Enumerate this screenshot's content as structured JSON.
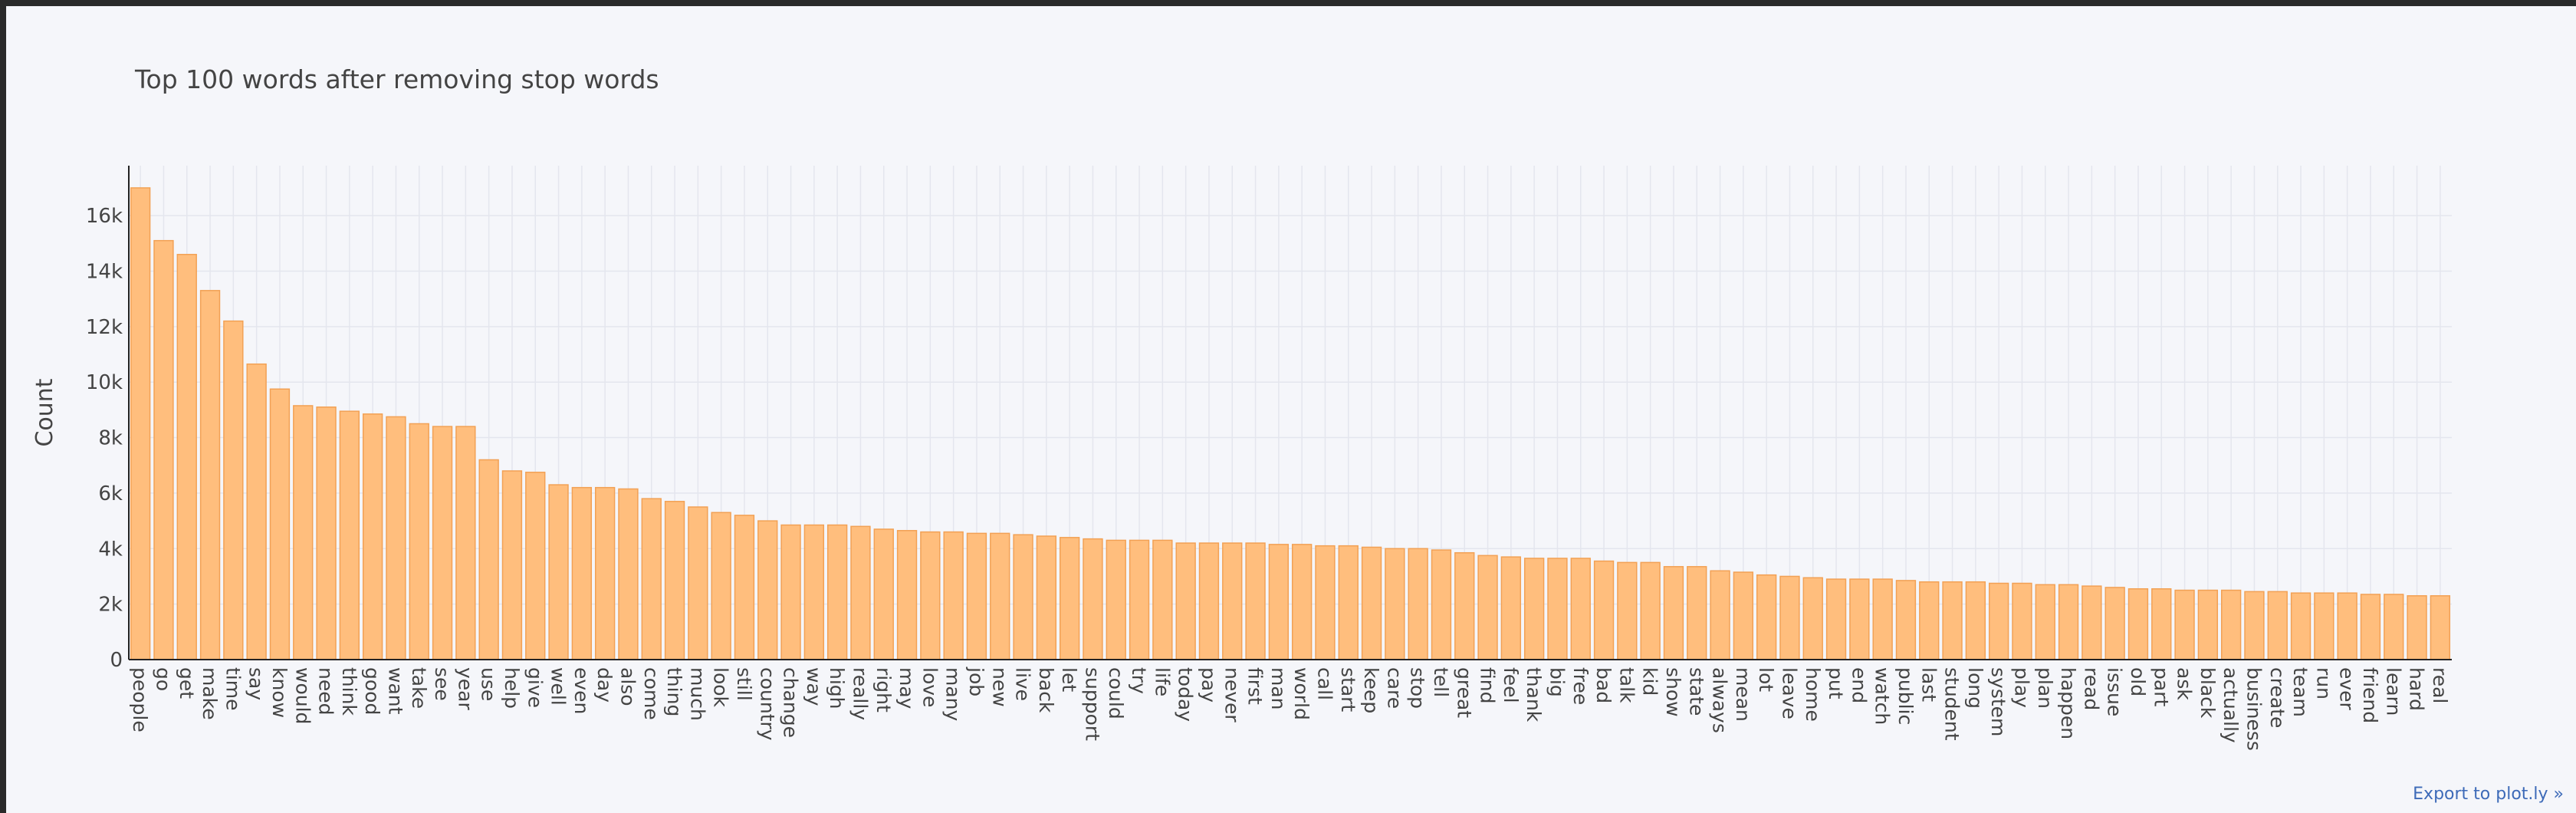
{
  "colors": {
    "bar_fill": "#ffbe7d",
    "bar_stroke": "#f2a155",
    "grid": "#e4e6ee",
    "axis": "#222222",
    "text": "#444444",
    "link": "#3d6ab8"
  },
  "export_link": "Export to plot.ly »",
  "chart_data": {
    "type": "bar",
    "title": "Top 100 words after removing stop words",
    "xlabel": "",
    "ylabel": "Count",
    "ylim": [
      0,
      17800
    ],
    "yticks": [
      0,
      2000,
      4000,
      6000,
      8000,
      10000,
      12000,
      14000,
      16000
    ],
    "ytick_labels": [
      "0",
      "2k",
      "4k",
      "6k",
      "8k",
      "10k",
      "12k",
      "14k",
      "16k"
    ],
    "grid": true,
    "categories": [
      "people",
      "go",
      "get",
      "make",
      "time",
      "say",
      "know",
      "would",
      "need",
      "think",
      "good",
      "want",
      "take",
      "see",
      "year",
      "use",
      "help",
      "give",
      "well",
      "even",
      "day",
      "also",
      "come",
      "thing",
      "much",
      "look",
      "still",
      "country",
      "change",
      "way",
      "high",
      "really",
      "right",
      "may",
      "love",
      "many",
      "job",
      "new",
      "live",
      "back",
      "let",
      "support",
      "could",
      "try",
      "life",
      "today",
      "pay",
      "never",
      "first",
      "man",
      "world",
      "call",
      "start",
      "keep",
      "care",
      "stop",
      "tell",
      "great",
      "find",
      "feel",
      "thank",
      "big",
      "free",
      "bad",
      "talk",
      "kid",
      "show",
      "state",
      "always",
      "mean",
      "lot",
      "leave",
      "home",
      "put",
      "end",
      "watch",
      "public",
      "last",
      "student",
      "long",
      "system",
      "play",
      "plan",
      "happen",
      "read",
      "issue",
      "old",
      "part",
      "ask",
      "black",
      "actually",
      "business",
      "create",
      "team",
      "run",
      "ever",
      "friend",
      "learn",
      "hard",
      "real"
    ],
    "values": [
      17000,
      15100,
      14600,
      13300,
      12200,
      10650,
      9750,
      9150,
      9100,
      8950,
      8850,
      8750,
      8500,
      8400,
      8400,
      7200,
      6800,
      6750,
      6300,
      6200,
      6200,
      6150,
      5800,
      5700,
      5500,
      5300,
      5200,
      5000,
      4850,
      4850,
      4850,
      4800,
      4700,
      4650,
      4600,
      4600,
      4550,
      4550,
      4500,
      4450,
      4400,
      4350,
      4300,
      4300,
      4300,
      4200,
      4200,
      4200,
      4200,
      4150,
      4150,
      4100,
      4100,
      4050,
      4000,
      4000,
      3950,
      3850,
      3750,
      3700,
      3650,
      3650,
      3650,
      3550,
      3500,
      3500,
      3350,
      3350,
      3200,
      3150,
      3050,
      3000,
      2950,
      2900,
      2900,
      2900,
      2850,
      2800,
      2800,
      2800,
      2750,
      2750,
      2700,
      2700,
      2650,
      2600,
      2550,
      2550,
      2500,
      2500,
      2500,
      2450,
      2450,
      2400,
      2400,
      2400,
      2350,
      2350,
      2300,
      2300
    ]
  }
}
